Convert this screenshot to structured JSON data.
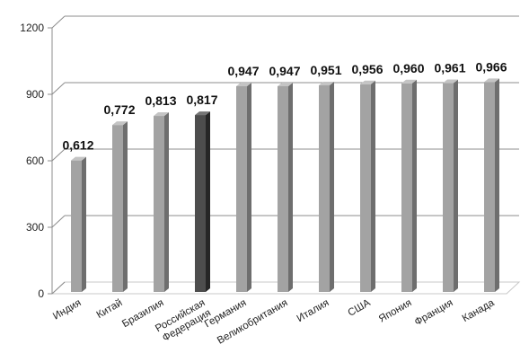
{
  "chart_data": {
    "type": "bar",
    "style": "3d-column",
    "title": "",
    "xlabel": "",
    "ylabel": "",
    "ylim": [
      0,
      1200
    ],
    "yticks": [
      0,
      300,
      600,
      900,
      1200
    ],
    "grid": true,
    "legend": "none",
    "categories": [
      "Индия",
      "Китай",
      "Бразилия",
      "Российская\nФедерация",
      "Германия",
      "Великобритания",
      "Италия",
      "США",
      "Япония",
      "Франция",
      "Канада"
    ],
    "values": [
      612,
      772,
      813,
      817,
      947,
      947,
      951,
      956,
      960,
      961,
      966
    ],
    "data_labels": [
      "0,612",
      "0,772",
      "0,813",
      "0,817",
      "0,947",
      "0,947",
      "0,951",
      "0,956",
      "0,960",
      "0,961",
      "0,966"
    ],
    "highlight_index": 3,
    "colors": {
      "bar_face": "#a3a3a3",
      "bar_side": "#6e6e6e",
      "bar_top": "#c4c4c4",
      "highlight_face": "#4d4d4d",
      "highlight_side": "#262626",
      "highlight_top": "#757575",
      "gridline": "#8c8c8c",
      "floor": "#c8c8c8"
    }
  }
}
